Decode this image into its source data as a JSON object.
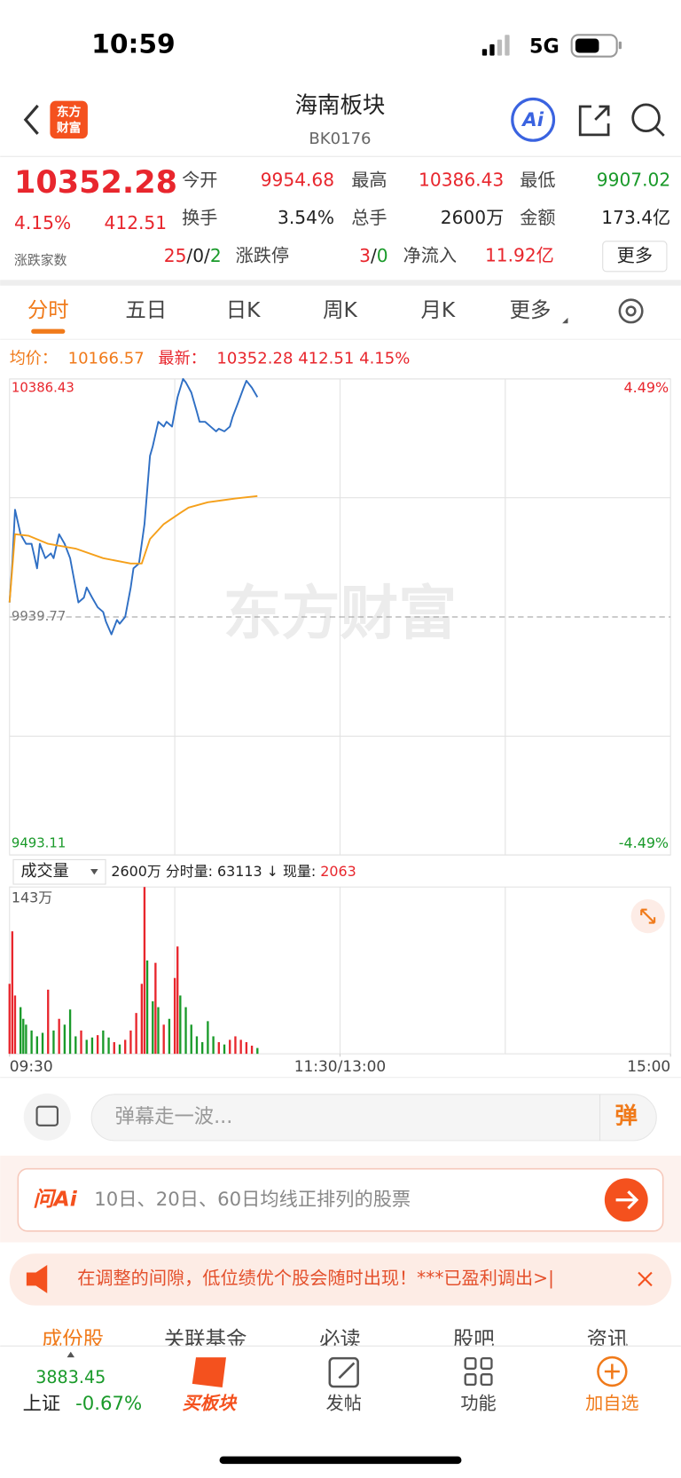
{
  "status_bar": {
    "time": "10:59",
    "network": "5G"
  },
  "header": {
    "title": "海南板块",
    "code": "BK0176",
    "logo": [
      "东方",
      "财富"
    ],
    "ai": "Ai"
  },
  "quote": {
    "price": "10352.28",
    "change_pct": "4.15%",
    "change": "412.51",
    "breadth_label": "涨跌家数",
    "stats": [
      {
        "label": "今开",
        "value": "9954.68"
      },
      {
        "label": "最高",
        "value": "10386.43"
      },
      {
        "label": "最低",
        "value": "9907.02"
      },
      {
        "label": "换手",
        "value": "3.54%"
      },
      {
        "label": "总手",
        "value": "2600万"
      },
      {
        "label": "金额",
        "value": "173.4亿"
      }
    ],
    "breadth": [
      "25",
      "/",
      "0",
      "/",
      "2"
    ],
    "limit_label": "涨跌停",
    "limit": [
      "3",
      "/",
      "0"
    ],
    "inflow_label": "净流入",
    "inflow": "11.92亿",
    "more": "更多"
  },
  "tabs": [
    "分时",
    "五日",
    "日K",
    "周K",
    "月K",
    "更多"
  ],
  "info_line": {
    "avg_label": "均价：",
    "avg": "10166.57",
    "latest_label": "最新：",
    "latest": "10352.28  412.51  4.15%"
  },
  "watermark": "东方财富",
  "chart_data": [
    {
      "type": "line",
      "xlim": [
        0,
        240
      ],
      "ylim": [
        9493.11,
        10386.43
      ],
      "yticks": [
        10386.43,
        9939.77,
        9493.11
      ],
      "y2lim": [
        -4.49,
        4.49
      ],
      "y2ticks": [
        {
          "value": 4.49,
          "label": "4.49%"
        },
        {
          "value": -4.49,
          "label": "-4.49%"
        }
      ],
      "prev_close": 9939.77,
      "series": [
        {
          "color": "#2f6fc4",
          "x": [
            0,
            1,
            2,
            4,
            6,
            8,
            10,
            11,
            13,
            15,
            16,
            18,
            20,
            22,
            23,
            25,
            27,
            28,
            30,
            32,
            34,
            35,
            37,
            39,
            40,
            42,
            44,
            45,
            47,
            49,
            51,
            52,
            54,
            56,
            57,
            59,
            61,
            63,
            64,
            66,
            68,
            69,
            71,
            73,
            75,
            76,
            78,
            80,
            81,
            83,
            85,
            86,
            88,
            90
          ],
          "values": [
            9967,
            10040,
            10141,
            10095,
            10077,
            10077,
            10031,
            10077,
            10050,
            10059,
            10050,
            10095,
            10077,
            10050,
            10022,
            9967,
            9976,
            9995,
            9976,
            9958,
            9949,
            9931,
            9907.02,
            9934,
            9927,
            9940,
            9995,
            10031,
            10040,
            10114,
            10242,
            10260,
            10306,
            10297,
            10306,
            10297,
            10352,
            10386.43,
            10380,
            10361,
            10325,
            10306,
            10306,
            10297,
            10288,
            10293,
            10288,
            10297,
            10315,
            10342,
            10370,
            10383,
            10370,
            10352.28
          ]
        },
        {
          "color": "#f5a01b",
          "x": [
            0,
            2,
            7,
            14,
            24,
            34,
            44,
            48,
            51,
            56,
            62,
            65,
            72,
            82,
            90
          ],
          "values": [
            9967,
            10095,
            10092,
            10077,
            10068,
            10050,
            10040,
            10040,
            10086,
            10114,
            10135,
            10145,
            10155,
            10162,
            10166.57
          ]
        }
      ]
    },
    {
      "type": "bar",
      "xlim": [
        0,
        240
      ],
      "xticks": [
        {
          "value": 0,
          "label": "09:30"
        },
        {
          "value": 120,
          "label": "11:30/13:00"
        },
        {
          "value": 240,
          "label": "15:00"
        }
      ],
      "ylim": [
        0,
        143
      ],
      "yticks": [
        {
          "value": 143,
          "label": "143万"
        }
      ],
      "x": [
        0,
        1,
        2,
        4,
        5,
        6,
        8,
        10,
        12,
        14,
        16,
        18,
        20,
        22,
        24,
        26,
        28,
        30,
        32,
        34,
        36,
        38,
        40,
        42,
        44,
        46,
        48,
        49,
        50,
        52,
        53,
        54,
        56,
        58,
        60,
        61,
        62,
        64,
        66,
        68,
        70,
        72,
        74,
        76,
        78,
        80,
        82,
        84,
        86,
        88,
        90
      ],
      "values": [
        60,
        105,
        50,
        40,
        30,
        25,
        20,
        15,
        18,
        55,
        20,
        30,
        25,
        38,
        15,
        20,
        12,
        14,
        16,
        20,
        14,
        10,
        8,
        12,
        20,
        35,
        60,
        143,
        80,
        45,
        78,
        40,
        25,
        30,
        65,
        92,
        50,
        40,
        25,
        15,
        10,
        28,
        15,
        10,
        8,
        12,
        15,
        12,
        10,
        7,
        5
      ],
      "colors": [
        "#e8262d",
        "#e8262d",
        "#e8262d",
        "#1a9a2a",
        "#1a9a2a",
        "#1a9a2a",
        "#1a9a2a",
        "#1a9a2a",
        "#1a9a2a",
        "#e8262d",
        "#1a9a2a",
        "#e8262d",
        "#1a9a2a",
        "#1a9a2a",
        "#1a9a2a",
        "#e8262d",
        "#1a9a2a",
        "#1a9a2a",
        "#e8262d",
        "#1a9a2a",
        "#1a9a2a",
        "#e8262d",
        "#1a9a2a",
        "#e8262d",
        "#e8262d",
        "#e8262d",
        "#e8262d",
        "#e8262d",
        "#1a9a2a",
        "#1a9a2a",
        "#e8262d",
        "#1a9a2a",
        "#e8262d",
        "#1a9a2a",
        "#e8262d",
        "#e8262d",
        "#1a9a2a",
        "#1a9a2a",
        "#1a9a2a",
        "#1a9a2a",
        "#1a9a2a",
        "#1a9a2a",
        "#1a9a2a",
        "#e8262d",
        "#1a9a2a",
        "#e8262d",
        "#e8262d",
        "#e8262d",
        "#e8262d",
        "#e8262d",
        "#1a9a2a"
      ]
    }
  ],
  "volume_header": {
    "selector": "成交量",
    "summary": "2600万 分时量: 63113 ↓ 现量: ",
    "current": "2063"
  },
  "comment": {
    "placeholder": "弹幕走一波...",
    "button": "弹"
  },
  "ai_bar": {
    "brand": "问Ai",
    "prompt": "10日、20日、60日均线正排列的股票"
  },
  "notice": {
    "text": "在调整的间隙，低位绩优个股会随时出现！***已盈利调出>|"
  },
  "section_tabs": [
    "成份股",
    "关联基金",
    "必读",
    "股吧",
    "资讯"
  ],
  "bottom_nav": {
    "index": {
      "value": "3883.45",
      "name": "上证",
      "change": "-0.67%"
    },
    "items": [
      "买板块",
      "发帖",
      "功能",
      "加自选"
    ]
  }
}
